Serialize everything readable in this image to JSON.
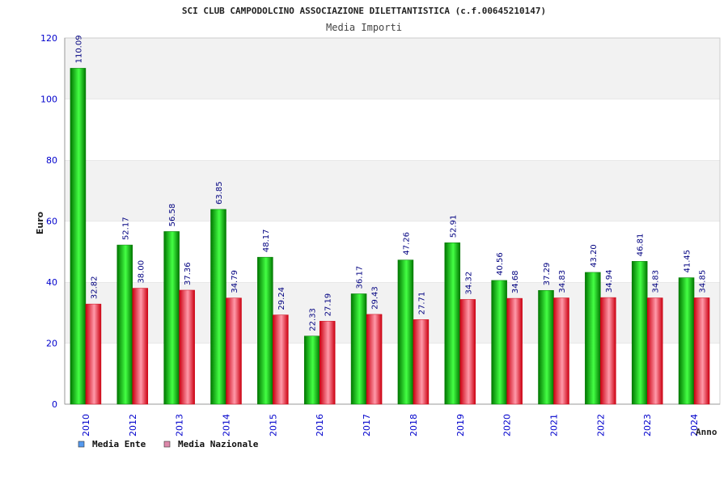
{
  "colors": {
    "title": "#222222",
    "tick": "#0000cc",
    "band_light": "#f2f2f2",
    "band_white": "#ffffff",
    "axis": "#999999",
    "label_blue": "#000080",
    "ente_dark": "#007700",
    "ente_light": "#44ff44",
    "naz_dark": "#cc0011",
    "naz_light": "#ff9aaa",
    "legend_ente": "#5599ee",
    "legend_naz": "#dd88aa"
  },
  "chart_data": {
    "type": "bar",
    "title": "SCI CLUB CAMPODOLCINO ASSOCIAZIONE DILETTANTISTICA (c.f.00645210147)",
    "subtitle": "Media Importi",
    "xlabel": "Anno",
    "ylabel": "Euro",
    "ylim": [
      0,
      120
    ],
    "yticks": [
      0,
      20,
      40,
      60,
      80,
      100,
      120
    ],
    "categories": [
      "2010",
      "2012",
      "2013",
      "2014",
      "2015",
      "2016",
      "2017",
      "2018",
      "2019",
      "2020",
      "2021",
      "2022",
      "2023",
      "2024"
    ],
    "series": [
      {
        "name": "Media Ente",
        "values": [
          110.09,
          52.17,
          56.58,
          63.85,
          48.17,
          22.33,
          36.17,
          47.26,
          52.91,
          40.56,
          37.29,
          43.2,
          46.81,
          41.45
        ],
        "labels": [
          "110.09",
          "52.17",
          "56.58",
          "63.85",
          "48.17",
          "22.33",
          "36.17",
          "47.26",
          "52.91",
          "40.56",
          "37.29",
          "43.20",
          "46.81",
          "41.45"
        ]
      },
      {
        "name": "Media Nazionale",
        "values": [
          32.82,
          38.0,
          37.36,
          34.79,
          29.24,
          27.19,
          29.43,
          27.71,
          34.32,
          34.68,
          34.83,
          34.94,
          34.83,
          34.85
        ],
        "labels": [
          "32.82",
          "38.00",
          "37.36",
          "34.79",
          "29.24",
          "27.19",
          "29.43",
          "27.71",
          "34.32",
          "34.68",
          "34.83",
          "34.94",
          "34.83",
          "34.85"
        ]
      }
    ]
  }
}
